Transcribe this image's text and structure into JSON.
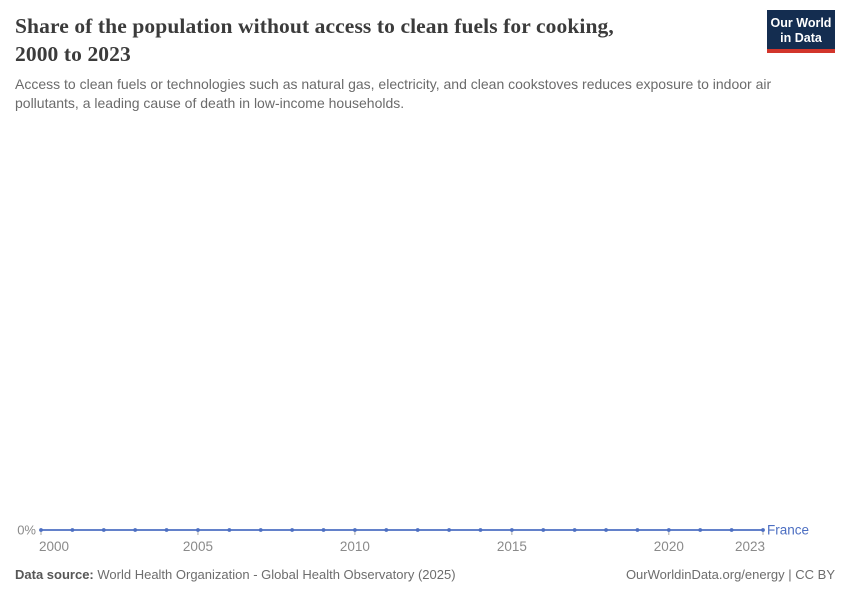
{
  "colors": {
    "line_blue": "#4d6fc2",
    "logo_navy": "#142d50",
    "logo_red": "#d2352b",
    "axis_gray": "#8a8a8a",
    "tick_gray": "#a9a9a9"
  },
  "header": {
    "title_line1": "Share of the population without access to clean fuels for cooking,",
    "title_line2": "2000 to 2023",
    "subtitle": "Access to clean fuels or technologies such as natural gas, electricity, and clean cookstoves reduces exposure to indoor air pollutants, a leading cause of death in low-income households.",
    "logo_line1": "Our World",
    "logo_line2": "in Data"
  },
  "chart_data": {
    "type": "line",
    "title": "Share of the population without access to clean fuels for cooking, 2000 to 2023",
    "xlabel": "",
    "ylabel": "",
    "unit": "%",
    "grid": false,
    "legend_position": "end-of-line",
    "x": [
      2000,
      2001,
      2002,
      2003,
      2004,
      2005,
      2006,
      2007,
      2008,
      2009,
      2010,
      2011,
      2012,
      2013,
      2014,
      2015,
      2016,
      2017,
      2018,
      2019,
      2020,
      2021,
      2022,
      2023
    ],
    "x_ticks": [
      2000,
      2005,
      2010,
      2015,
      2020,
      2023
    ],
    "y_axis": {
      "min": 0,
      "tick_labels": [
        "0%"
      ]
    },
    "series": [
      {
        "name": "France",
        "color": "#4d6fc2",
        "values": [
          0,
          0,
          0,
          0,
          0,
          0,
          0,
          0,
          0,
          0,
          0,
          0,
          0,
          0,
          0,
          0,
          0,
          0,
          0,
          0,
          0,
          0,
          0,
          0
        ]
      }
    ]
  },
  "footer": {
    "datasource_label": "Data source:",
    "datasource_value": "World Health Organization - Global Health Observatory (2025)",
    "attribution": "OurWorldinData.org/energy | CC BY"
  }
}
